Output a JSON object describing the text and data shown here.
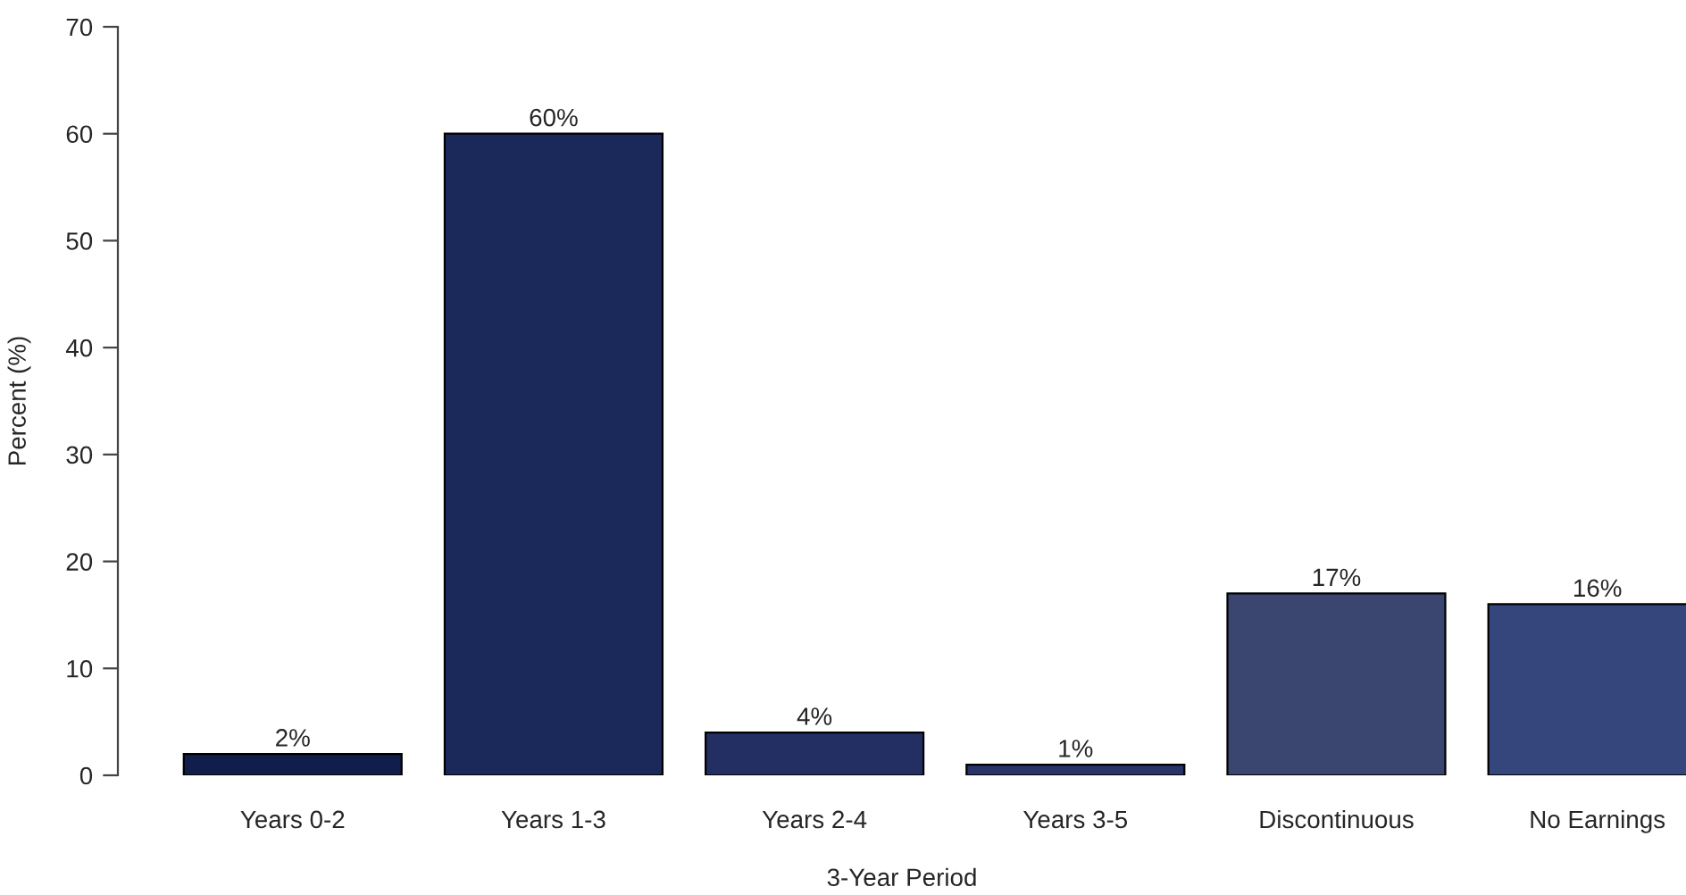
{
  "chart_data": {
    "type": "bar",
    "xlabel": "3-Year Period",
    "ylabel": "Percent (%)",
    "categories": [
      "Years 0-2",
      "Years 1-3",
      "Years 2-4",
      "Years 3-5",
      "Discontinuous",
      "No Earnings"
    ],
    "values": [
      2,
      60,
      4,
      1,
      17,
      16
    ],
    "colors": [
      "#111d4a",
      "#1b285a",
      "#232f63",
      "#283468",
      "#3a4670",
      "#35467c"
    ],
    "value_labels": [
      "2%",
      "60%",
      "4%",
      "1%",
      "17%",
      "16%"
    ],
    "ylim": [
      0,
      70
    ],
    "yticks": [
      0,
      10,
      20,
      30,
      40,
      50,
      60,
      70
    ],
    "grid": false,
    "legend": false
  }
}
